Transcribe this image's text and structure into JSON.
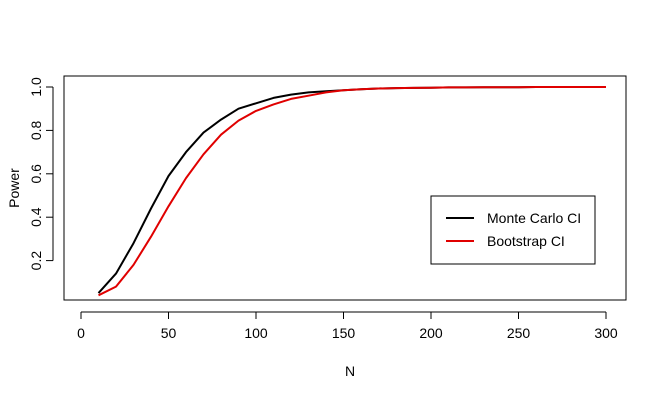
{
  "chart_data": {
    "type": "line",
    "title": "",
    "xlabel": "N",
    "ylabel": "Power",
    "xlim": [
      0,
      300
    ],
    "ylim": [
      0.0,
      1.0
    ],
    "x_ticks": [
      0,
      50,
      100,
      150,
      200,
      250,
      300
    ],
    "y_ticks": [
      0.2,
      0.4,
      0.6,
      0.8,
      1.0
    ],
    "x_tick_labels": [
      "0",
      "50",
      "100",
      "150",
      "200",
      "250",
      "300"
    ],
    "y_tick_labels": [
      "0.2",
      "0.4",
      "0.6",
      "0.8",
      "1.0"
    ],
    "grid": false,
    "legend_position": "bottom-right",
    "series": [
      {
        "name": "Monte Carlo CI",
        "color": "#000000",
        "x": [
          10,
          20,
          30,
          40,
          50,
          60,
          70,
          80,
          90,
          100,
          110,
          120,
          130,
          140,
          150,
          160,
          170,
          180,
          190,
          200,
          210,
          220,
          230,
          240,
          250,
          260,
          270,
          280,
          290,
          300
        ],
        "y": [
          0.05,
          0.14,
          0.28,
          0.44,
          0.59,
          0.7,
          0.79,
          0.85,
          0.9,
          0.925,
          0.95,
          0.965,
          0.975,
          0.98,
          0.985,
          0.99,
          0.993,
          0.995,
          0.996,
          0.997,
          0.998,
          0.998,
          0.999,
          0.999,
          0.999,
          1.0,
          1.0,
          1.0,
          1.0,
          1.0
        ]
      },
      {
        "name": "Bootstrap CI",
        "color": "#e00000",
        "x": [
          10,
          20,
          30,
          40,
          50,
          60,
          70,
          80,
          90,
          100,
          110,
          120,
          130,
          140,
          150,
          160,
          170,
          180,
          190,
          200,
          210,
          220,
          230,
          240,
          250,
          260,
          270,
          280,
          290,
          300
        ],
        "y": [
          0.04,
          0.08,
          0.18,
          0.31,
          0.45,
          0.58,
          0.69,
          0.78,
          0.845,
          0.89,
          0.92,
          0.945,
          0.96,
          0.975,
          0.985,
          0.99,
          0.993,
          0.995,
          0.996,
          0.997,
          0.998,
          0.998,
          0.999,
          0.999,
          0.999,
          1.0,
          1.0,
          1.0,
          1.0,
          1.0
        ]
      }
    ]
  }
}
